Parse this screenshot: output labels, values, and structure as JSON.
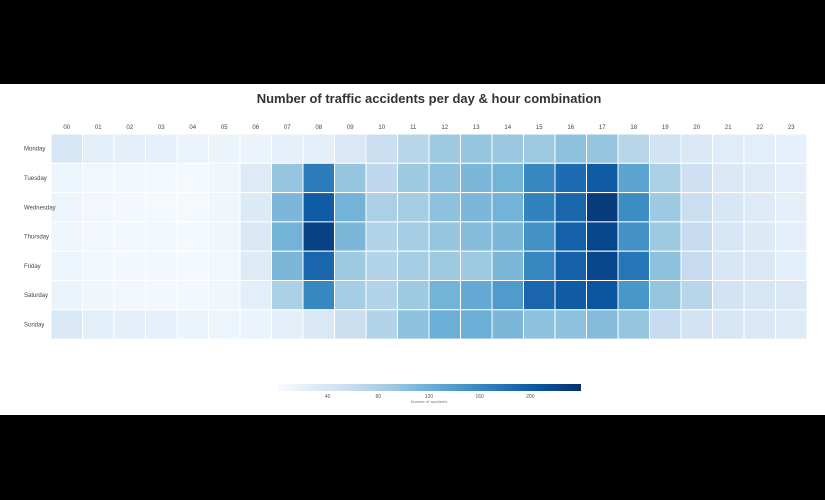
{
  "chart_data": {
    "type": "heatmap",
    "title": "Number of traffic accidents per day & hour combination",
    "x_categories": [
      "00",
      "01",
      "02",
      "03",
      "04",
      "05",
      "06",
      "07",
      "08",
      "09",
      "10",
      "11",
      "12",
      "13",
      "14",
      "15",
      "16",
      "17",
      "18",
      "19",
      "20",
      "21",
      "22",
      "23"
    ],
    "y_categories": [
      "Monday",
      "Tuesday",
      "Wednesday",
      "Thursday",
      "Friday",
      "Saturday",
      "Sunday"
    ],
    "values": [
      [
        40,
        25,
        22,
        20,
        16,
        14,
        15,
        20,
        22,
        35,
        55,
        70,
        90,
        95,
        92,
        90,
        100,
        95,
        70,
        45,
        35,
        28,
        25,
        20
      ],
      [
        12,
        8,
        5,
        4,
        4,
        10,
        30,
        95,
        170,
        95,
        65,
        90,
        100,
        110,
        115,
        160,
        185,
        200,
        130,
        80,
        50,
        35,
        30,
        22
      ],
      [
        12,
        7,
        5,
        4,
        4,
        10,
        32,
        110,
        200,
        115,
        80,
        85,
        100,
        110,
        115,
        165,
        190,
        230,
        155,
        90,
        55,
        38,
        30,
        22
      ],
      [
        10,
        7,
        5,
        5,
        4,
        10,
        35,
        115,
        225,
        110,
        75,
        85,
        95,
        105,
        110,
        150,
        195,
        220,
        150,
        90,
        60,
        40,
        32,
        22
      ],
      [
        12,
        8,
        6,
        5,
        4,
        8,
        30,
        110,
        190,
        90,
        75,
        85,
        90,
        90,
        110,
        160,
        195,
        220,
        175,
        100,
        60,
        40,
        35,
        25
      ],
      [
        15,
        10,
        7,
        5,
        5,
        10,
        25,
        80,
        160,
        85,
        75,
        90,
        115,
        125,
        140,
        190,
        200,
        205,
        145,
        95,
        70,
        45,
        40,
        35
      ],
      [
        35,
        25,
        22,
        20,
        15,
        12,
        15,
        22,
        35,
        55,
        75,
        100,
        120,
        120,
        110,
        100,
        100,
        105,
        95,
        60,
        45,
        40,
        35,
        30
      ]
    ],
    "colorbar": {
      "ticks": [
        40,
        80,
        120,
        160,
        200
      ],
      "label": "Number of accidents",
      "range": [
        0,
        240
      ],
      "colors": [
        "#f7fbff",
        "#deebf7",
        "#c6dbef",
        "#9ecae1",
        "#6baed6",
        "#4292c6",
        "#2171b5",
        "#08519c",
        "#08306b"
      ]
    }
  }
}
